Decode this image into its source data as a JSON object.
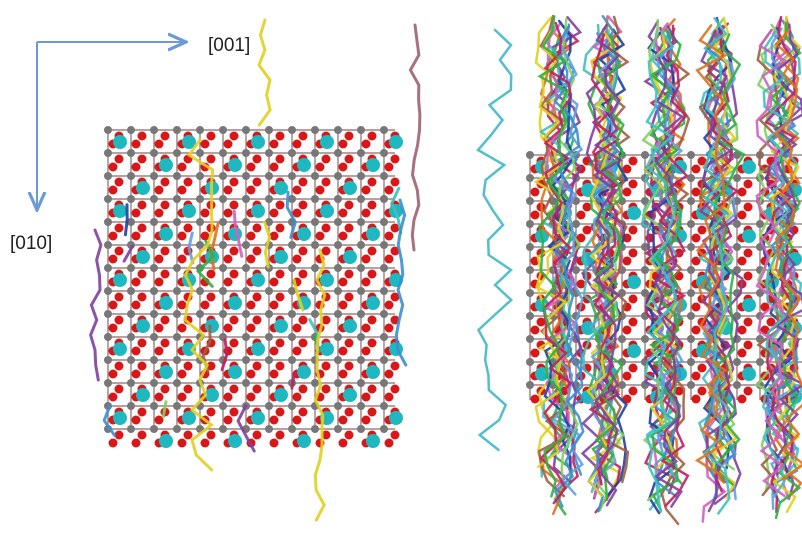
{
  "axes": {
    "horizontal": "[001]",
    "vertical": "[010]"
  }
}
